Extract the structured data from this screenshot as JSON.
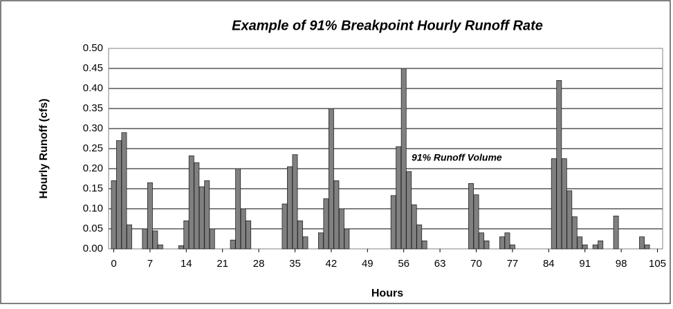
{
  "chart_data": {
    "type": "bar",
    "title": "Example of  91% Breakpoint Hourly Runoff Rate",
    "x_label": "Hours",
    "y_label": "Hourly Runoff (cfs)",
    "annotation": "91% Runoff Volume",
    "color": "#808080",
    "x": [
      0,
      1,
      2,
      3,
      6,
      7,
      8,
      9,
      13,
      14,
      15,
      16,
      17,
      18,
      19,
      23,
      24,
      25,
      26,
      33,
      34,
      35,
      36,
      37,
      40,
      41,
      42,
      43,
      44,
      45,
      54,
      55,
      56,
      57,
      58,
      59,
      60,
      69,
      70,
      71,
      72,
      75,
      76,
      77,
      85,
      86,
      87,
      88,
      89,
      90,
      91,
      93,
      94,
      97,
      102,
      103
    ],
    "values": [
      0.17,
      0.27,
      0.29,
      0.06,
      0.05,
      0.165,
      0.045,
      0.01,
      0.008,
      0.07,
      0.232,
      0.215,
      0.155,
      0.17,
      0.05,
      0.022,
      0.2,
      0.1,
      0.07,
      0.112,
      0.205,
      0.235,
      0.07,
      0.03,
      0.04,
      0.125,
      0.35,
      0.17,
      0.1,
      0.05,
      0.133,
      0.255,
      0.45,
      0.193,
      0.11,
      0.06,
      0.02,
      0.163,
      0.135,
      0.04,
      0.02,
      0.03,
      0.04,
      0.01,
      0.225,
      0.42,
      0.225,
      0.145,
      0.08,
      0.03,
      0.01,
      0.01,
      0.02,
      0.082,
      0.03,
      0.01
    ],
    "xlim": [
      -1,
      106
    ],
    "xticks": [
      0,
      7,
      14,
      21,
      28,
      35,
      42,
      49,
      56,
      63,
      70,
      77,
      84,
      91,
      98,
      105
    ],
    "ylim": [
      0,
      0.5
    ],
    "yticks": [
      {
        "value": 0,
        "label": "0.00"
      },
      {
        "value": 0.05,
        "label": "0.05"
      },
      {
        "value": 0.1,
        "label": "0.10"
      },
      {
        "value": 0.15,
        "label": "0.15"
      },
      {
        "value": 0.2,
        "label": "0.20"
      },
      {
        "value": 0.25,
        "label": "0.25"
      },
      {
        "value": 0.3,
        "label": "0.30"
      },
      {
        "value": 0.35,
        "label": "0.35"
      },
      {
        "value": 0.4,
        "label": "0.40"
      },
      {
        "value": 0.45,
        "label": "0.45"
      },
      {
        "value": 0.5,
        "label": "0.50"
      }
    ],
    "grid": true
  }
}
